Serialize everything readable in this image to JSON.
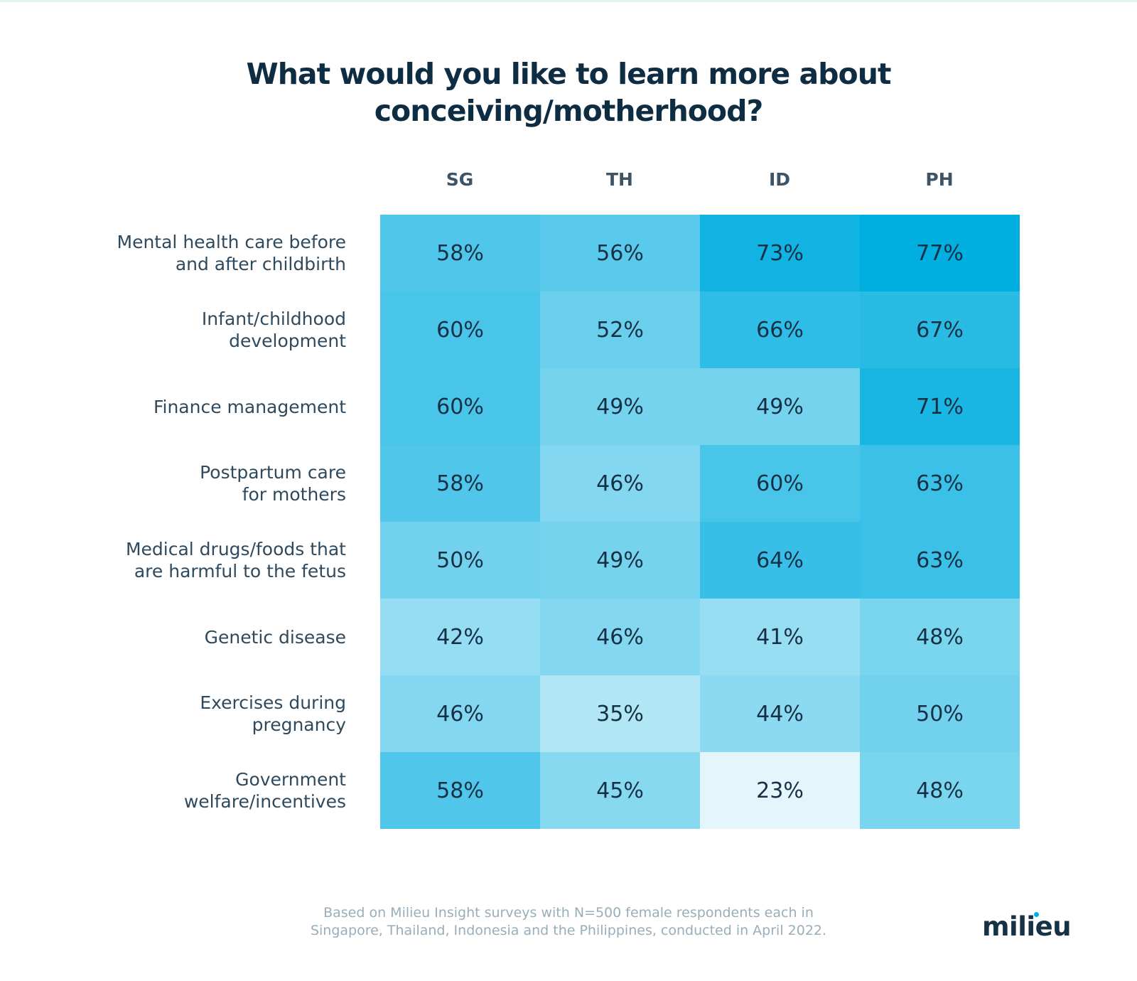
{
  "chart_data": {
    "type": "heatmap",
    "title": "What would you like to learn more about conceiving/motherhood?",
    "title_lines": [
      "What would you like to learn more about",
      "conceiving/motherhood?"
    ],
    "columns": [
      "SG",
      "TH",
      "ID",
      "PH"
    ],
    "rows": [
      {
        "label_lines": [
          "Mental health care before",
          "and after childbirth"
        ],
        "values": [
          58,
          56,
          73,
          77
        ]
      },
      {
        "label_lines": [
          "Infant/childhood",
          "development"
        ],
        "values": [
          60,
          52,
          66,
          67
        ]
      },
      {
        "label_lines": [
          "Finance management"
        ],
        "values": [
          60,
          49,
          49,
          71
        ]
      },
      {
        "label_lines": [
          "Postpartum care",
          "for mothers"
        ],
        "values": [
          58,
          46,
          60,
          63
        ]
      },
      {
        "label_lines": [
          "Medical drugs/foods that",
          "are harmful to the fetus"
        ],
        "values": [
          50,
          49,
          64,
          63
        ]
      },
      {
        "label_lines": [
          "Genetic disease"
        ],
        "values": [
          42,
          46,
          41,
          48
        ]
      },
      {
        "label_lines": [
          "Exercises during",
          "pregnancy"
        ],
        "values": [
          46,
          35,
          44,
          50
        ]
      },
      {
        "label_lines": [
          "Government",
          "welfare/incentives"
        ],
        "values": [
          58,
          45,
          23,
          48
        ]
      }
    ],
    "value_suffix": "%",
    "color_scale": {
      "min_value": 23,
      "max_value": 77,
      "low_color": "#e4f6fb",
      "high_color": "#00aee0"
    }
  },
  "footnote_lines": [
    "Based on Milieu Insight surveys with N=500 female respondents each in",
    "Singapore, Thailand, Indonesia and the Philippines, conducted in April 2022."
  ],
  "logo": {
    "text": "milieu",
    "accent_color": "#00aee0",
    "text_color": "#163246"
  }
}
